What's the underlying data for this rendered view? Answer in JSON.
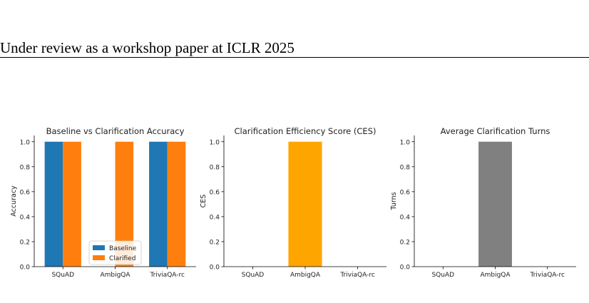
{
  "header": {
    "running_head": "Under review as a workshop paper at ICLR 2025"
  },
  "colors": {
    "baseline": "#1f77b4",
    "clarified": "#ff7f0e",
    "ces": "#ffa500",
    "turns": "#808080"
  },
  "chart_data": [
    {
      "type": "bar",
      "title": "Baseline vs Clarification Accuracy",
      "xlabel": "",
      "ylabel": "Accuracy",
      "categories": [
        "SQuAD",
        "AmbigQA",
        "TriviaQA-rc"
      ],
      "series": [
        {
          "name": "Baseline",
          "values": [
            1.0,
            0.0,
            1.0
          ]
        },
        {
          "name": "Clarified",
          "values": [
            1.0,
            1.0,
            1.0
          ]
        }
      ],
      "ylim": [
        0,
        1.05
      ],
      "yticks": [
        "0.0",
        "0.2",
        "0.4",
        "0.6",
        "0.8",
        "1.0"
      ],
      "legend": "lower-center",
      "grid": false
    },
    {
      "type": "bar",
      "title": "Clarification Efficiency Score (CES)",
      "xlabel": "",
      "ylabel": "CES",
      "categories": [
        "SQuAD",
        "AmbigQA",
        "TriviaQA-rc"
      ],
      "values": [
        0.0,
        1.0,
        0.0
      ],
      "ylim": [
        0,
        1.05
      ],
      "yticks": [
        "0.0",
        "0.2",
        "0.4",
        "0.6",
        "0.8",
        "1.0"
      ],
      "grid": false
    },
    {
      "type": "bar",
      "title": "Average Clarification Turns",
      "xlabel": "",
      "ylabel": "Turns",
      "categories": [
        "SQuAD",
        "AmbigQA",
        "TriviaQA-rc"
      ],
      "values": [
        0.0,
        1.0,
        0.0
      ],
      "ylim": [
        0,
        1.05
      ],
      "yticks": [
        "0.0",
        "0.2",
        "0.4",
        "0.6",
        "0.8",
        "1.0"
      ],
      "grid": false
    }
  ]
}
